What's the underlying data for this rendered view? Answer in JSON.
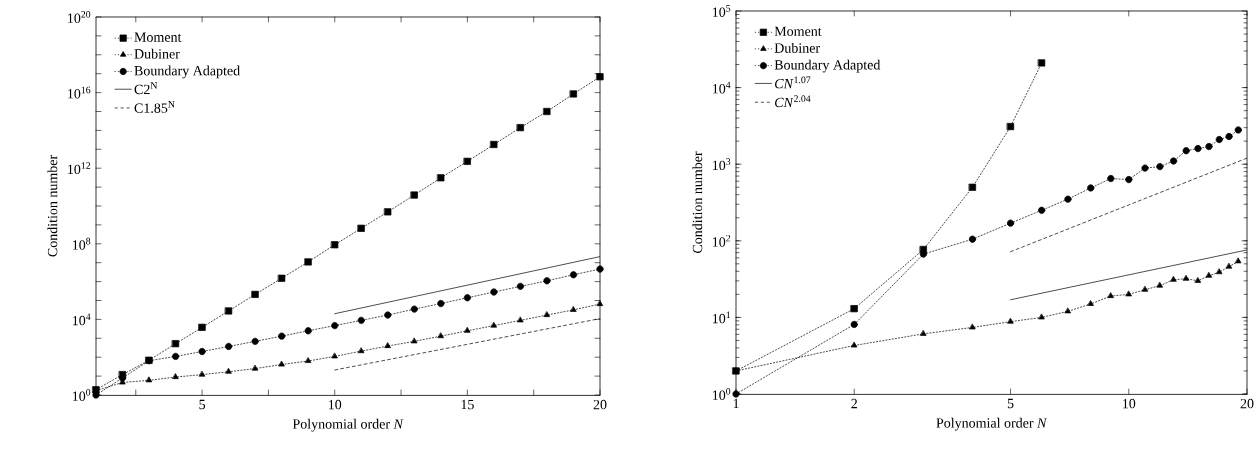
{
  "chart_data": [
    {
      "type": "line",
      "xlabel": "Polynomial order *N*",
      "ylabel": "Condition number",
      "log": "y",
      "legend": "top left",
      "xlim": [
        1,
        20
      ],
      "xticks": [
        {
          "value": 2.5,
          "label": null
        },
        5,
        {
          "value": 7.5,
          "label": null
        },
        10,
        {
          "value": 12.5,
          "label": null
        },
        15,
        {
          "value": 17.5,
          "label": null
        },
        20
      ],
      "ylim": [
        1,
        1e+20
      ],
      "yticks": [
        {
          "value": 1,
          "label": "10$^{0}$"
        },
        {
          "value": 10.0,
          "label": null
        },
        {
          "value": 100.0,
          "label": null
        },
        {
          "value": 1000.0,
          "label": null
        },
        {
          "value": 10000.0,
          "label": "10$^{4}$"
        },
        {
          "value": 100000.0,
          "label": null
        },
        {
          "value": 1000000.0,
          "label": null
        },
        {
          "value": 10000000.0,
          "label": null
        },
        {
          "value": 100000000.0,
          "label": "10$^{8}$"
        },
        {
          "value": 1000000000.0,
          "label": null
        },
        {
          "value": 10000000000.0,
          "label": null
        },
        {
          "value": 100000000000.0,
          "label": null
        },
        {
          "value": 1000000000000.0,
          "label": "10$^{12}$"
        },
        {
          "value": 10000000000000.0,
          "label": null
        },
        {
          "value": 100000000000000.0,
          "label": null
        },
        {
          "value": 1000000000000000.0,
          "label": null
        },
        {
          "value": 1e+16,
          "label": "10$^{16}$"
        },
        {
          "value": 1e+17,
          "label": null
        },
        {
          "value": 1e+18,
          "label": null
        },
        {
          "value": 1e+19,
          "label": null
        },
        {
          "value": 1e+20,
          "label": "10$^{20}$"
        }
      ],
      "x": [
        1,
        2,
        3,
        4,
        5,
        6,
        7,
        8,
        9,
        10,
        11,
        12,
        13,
        14,
        15,
        16,
        17,
        18,
        19,
        20
      ],
      "series": [
        {
          "name": "Moment",
          "color": "#000000",
          "marker": "square",
          "line_style": "dotted",
          "values": [
            1.9,
            12,
            69,
            520.0,
            3800.0,
            28000.0,
            210000.0,
            1500000.0,
            11000000.0,
            89000000.0,
            660000000.0,
            4900000000.0,
            38000000000.0,
            310000000000.0,
            2300000000000.0,
            18000000000000.0,
            140000000000000.0,
            1000000000000000.0,
            8500000000000000.0,
            6.9e+16
          ]
        },
        {
          "name": "Dubiner",
          "color": "#000000",
          "marker": "triangle",
          "line_style": "dotted",
          "values": [
            1.7,
            4.6,
            6.0,
            8.9,
            12,
            17,
            25,
            41,
            63,
            110.0,
            210.0,
            390.0,
            690.0,
            1300.0,
            2500.0,
            4700.0,
            8900.0,
            17000.0,
            32000.0,
            65000.0
          ]
        },
        {
          "name": "Boundary Adapted",
          "color": "#000000",
          "marker": "circle",
          "line_style": "dotted",
          "values": [
            1.0,
            8,
            65,
            110.0,
            200.0,
            370.0,
            690.0,
            1300.0,
            2500.0,
            4700.0,
            8900.0,
            17000.0,
            35000.0,
            69000.0,
            140000.0,
            280000.0,
            560000.0,
            1100000.0,
            2300000.0,
            4600000.0
          ]
        },
        {
          "name": "C2$^{N}$",
          "color": "#000000",
          "marker": "none",
          "line_style": "solid",
          "x": [
            10,
            20
          ],
          "values": [
            20000.0,
            21000000.0
          ]
        },
        {
          "name": "C1.85$^{N}$",
          "color": "#000000",
          "marker": "none",
          "line_style": "dashed",
          "x": [
            10,
            20
          ],
          "values": [
            21,
            11000.0
          ]
        }
      ]
    },
    {
      "type": "line",
      "xlabel": "Polynomial order *N*",
      "ylabel": "Condition number",
      "log": "xy",
      "legend": "top left",
      "xlim": [
        1,
        20
      ],
      "xticks": [
        1,
        2,
        5,
        10,
        20
      ],
      "ylim": [
        1,
        100000.0
      ],
      "yticks": [
        {
          "value": 1,
          "label": "10$^{0}$"
        },
        {
          "value": 10.0,
          "label": "10$^{1}$"
        },
        {
          "value": 100.0,
          "label": "10$^{2}$"
        },
        {
          "value": 1000.0,
          "label": "10$^{3}$"
        },
        {
          "value": 10000.0,
          "label": "10$^{4}$"
        },
        {
          "value": 100000.0,
          "label": "10$^{5}$"
        }
      ],
      "x": [
        1,
        2,
        3,
        4,
        5,
        6,
        7,
        8,
        9,
        10,
        11,
        12,
        13,
        14,
        15,
        16,
        17,
        18,
        19
      ],
      "series": [
        {
          "name": "Moment",
          "color": "#000000",
          "marker": "square",
          "line_style": "dotted",
          "x": [
            1,
            2,
            3,
            4,
            5,
            6
          ],
          "values": [
            2.0,
            13,
            77,
            500.0,
            3100.0,
            21000.0
          ]
        },
        {
          "name": "Dubiner",
          "color": "#000000",
          "marker": "triangle",
          "line_style": "dotted",
          "values": [
            2.0,
            4.3,
            6.1,
            7.4,
            8.8,
            10,
            12,
            15,
            19,
            20,
            23,
            26,
            31,
            32,
            30,
            35,
            39,
            46,
            54
          ]
        },
        {
          "name": "Boundary Adapted",
          "color": "#000000",
          "marker": "circle",
          "line_style": "dotted",
          "values": [
            1.0,
            8.1,
            67,
            105.0,
            170.0,
            250.0,
            350.0,
            490.0,
            650.0,
            630.0,
            890.0,
            930.0,
            1100.0,
            1500.0,
            1600.0,
            1700.0,
            2100.0,
            2300.0,
            2800.0
          ]
        },
        {
          "name": "*CN*$^{1.07}$",
          "color": "#000000",
          "marker": "none",
          "line_style": "solid",
          "x": [
            5,
            20
          ],
          "values": [
            17,
            76
          ]
        },
        {
          "name": "*CN*$^{2.04}$",
          "color": "#000000",
          "marker": "none",
          "line_style": "dashed",
          "x": [
            5,
            20
          ],
          "values": [
            72,
            1200.0
          ]
        }
      ]
    }
  ]
}
